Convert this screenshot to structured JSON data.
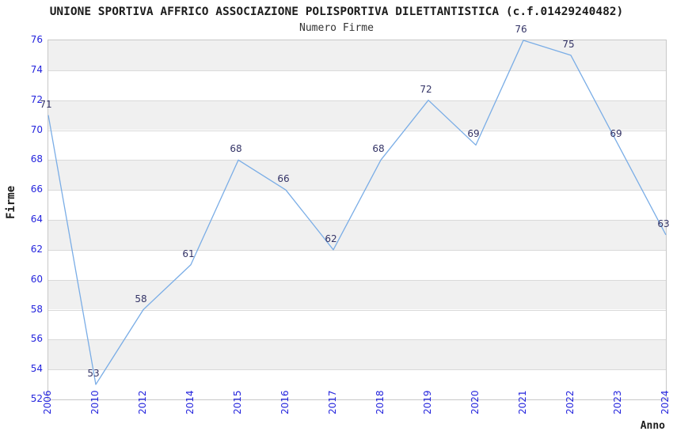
{
  "title": "UNIONE SPORTIVA AFFRICO ASSOCIAZIONE POLISPORTIVA DILETTANTISTICA (c.f.01429240482)",
  "subtitle": "Numero Firme",
  "chart_data": {
    "type": "line",
    "categories": [
      "2006",
      "2010",
      "2012",
      "2014",
      "2015",
      "2016",
      "2017",
      "2018",
      "2019",
      "2020",
      "2021",
      "2022",
      "2023",
      "2024"
    ],
    "values": [
      71,
      53,
      58,
      61,
      68,
      66,
      62,
      68,
      72,
      69,
      76,
      75,
      69,
      63
    ],
    "xlabel": "Anno",
    "ylabel": "Firme",
    "ylim": [
      52,
      76
    ],
    "ytick_step": 2,
    "grid": "horizontal-bands",
    "legend_position": "none",
    "colors": {
      "line": "#7aade6",
      "data_label": "#333366",
      "tick_label": "#2424dd",
      "band_gray": "#f0f0f0",
      "band_white": "#ffffff",
      "gridline": "#d9d9d9",
      "plot_border": "#c8c8c8",
      "title_text": "#1c1c1c"
    }
  }
}
